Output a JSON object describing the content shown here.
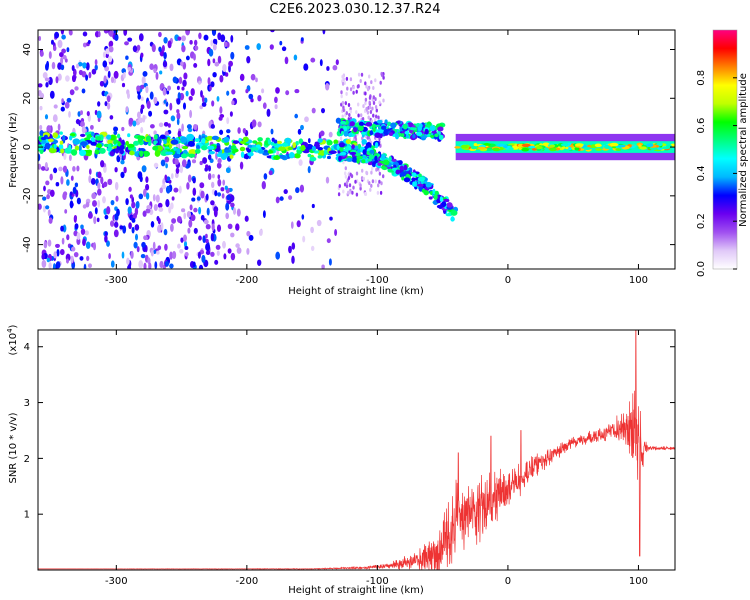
{
  "title": "C2E6.2023.030.12.37.R24",
  "chart_data": [
    {
      "type": "heatmap",
      "xlabel": "Height of straight line (km)",
      "ylabel": "Frequency (Hz)",
      "xlim": [
        -360,
        128
      ],
      "ylim": [
        -50,
        48
      ],
      "xticks": [
        -300,
        -200,
        -100,
        0,
        100
      ],
      "yticks": [
        -40,
        -20,
        0,
        20,
        40
      ],
      "colorbar": {
        "label": "Normalized spectral amplitude",
        "range": [
          0,
          1
        ],
        "ticks": [
          "0.0",
          "0.2",
          "0.4",
          "0.6",
          "0.8"
        ],
        "tick_values": [
          0,
          0.2,
          0.4,
          0.6,
          0.8
        ],
        "colors": [
          "#ffffff",
          "#e0c8f8",
          "#a050f0",
          "#6a00f0",
          "#0000ff",
          "#00b8ff",
          "#00ffff",
          "#00ff80",
          "#00ff00",
          "#c0ff00",
          "#ffff00",
          "#ff8000",
          "#ff0000",
          "#ff0080"
        ]
      },
      "features": [
        {
          "segment": "scatter",
          "x_range": [
            -360,
            -130
          ],
          "y_range": [
            -50,
            48
          ],
          "amplitude": 0.1
        },
        {
          "segment": "band",
          "x_range": [
            -360,
            -100
          ],
          "y_center": 2,
          "y_halfwidth": 4,
          "amplitude": 0.3
        },
        {
          "segment": "upper-branch",
          "x_start": -130,
          "y_start": 8,
          "x_end": -50,
          "y_end": 6,
          "amplitude": 0.35
        },
        {
          "segment": "lower-branch",
          "x_start": -130,
          "y_start": -2,
          "x_end": -40,
          "y_end": -28,
          "amplitude": 0.3
        },
        {
          "segment": "bright-line",
          "x_range": [
            -40,
            128
          ],
          "y_center": 0,
          "y_halfwidth": 3,
          "amplitude": 0.75
        }
      ]
    },
    {
      "type": "line",
      "xlabel": "Height of straight line (km)",
      "ylabel": "SNR (10 * v/v)",
      "yscale_label": "(x10",
      "yscale_exp": "4",
      "yscale_close": ")",
      "xlim": [
        -360,
        128
      ],
      "ylim": [
        0,
        4.3
      ],
      "xticks": [
        -300,
        -200,
        -100,
        0,
        100
      ],
      "yticks": [
        1,
        2,
        3,
        4
      ],
      "color": "#ee3333",
      "profile": {
        "x": [
          -360,
          -150,
          -110,
          -90,
          -70,
          -55,
          -45,
          -40,
          -35,
          -28,
          -20,
          -10,
          0,
          10,
          20,
          30,
          40,
          50,
          60,
          70,
          80,
          90,
          97,
          101,
          105,
          110,
          128
        ],
        "y": [
          0.02,
          0.02,
          0.04,
          0.08,
          0.15,
          0.3,
          0.6,
          0.9,
          1.0,
          0.95,
          1.1,
          1.3,
          1.5,
          1.6,
          1.85,
          2.0,
          2.15,
          2.3,
          2.35,
          2.4,
          2.5,
          2.55,
          2.5,
          2.3,
          2.2,
          2.18,
          2.18
        ],
        "noise": [
          0.0,
          0.005,
          0.02,
          0.05,
          0.15,
          0.4,
          0.6,
          0.7,
          0.6,
          0.5,
          0.55,
          0.5,
          0.35,
          0.25,
          0.2,
          0.15,
          0.12,
          0.1,
          0.1,
          0.12,
          0.14,
          0.35,
          0.7,
          0.9,
          0.1,
          0.03,
          0.03
        ]
      },
      "spikes": [
        {
          "x": -38,
          "y": 2.1
        },
        {
          "x": -13,
          "y": 2.4
        },
        {
          "x": 10,
          "y": 2.5
        },
        {
          "x": 98,
          "y": 4.3
        },
        {
          "x": 101,
          "y": 0.25
        }
      ]
    }
  ]
}
